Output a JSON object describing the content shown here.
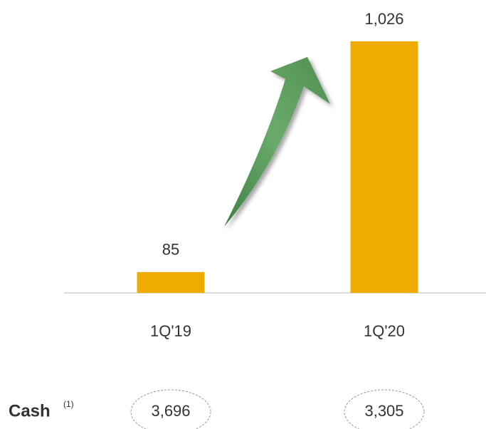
{
  "chart_data": {
    "type": "bar",
    "categories": [
      "1Q'19",
      "1Q'20"
    ],
    "values": [
      85,
      1026
    ],
    "value_labels": [
      "85",
      "1,026"
    ],
    "color": "#f0ab00"
  },
  "cash_row": {
    "label": "Cash",
    "note": "(1)",
    "values": [
      3696,
      3305
    ],
    "value_labels": [
      "3,696",
      "3,305"
    ]
  }
}
